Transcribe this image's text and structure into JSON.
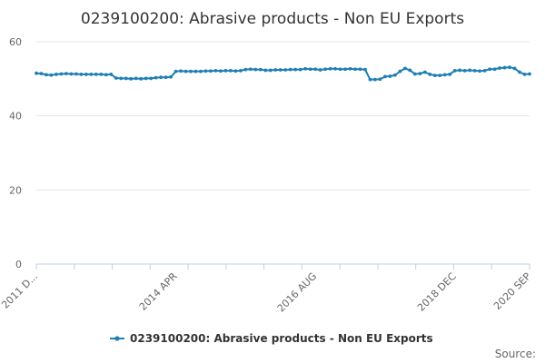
{
  "chart_data": {
    "type": "line",
    "title": "0239100200: Abrasive products - Non EU Exports",
    "xlabel": "",
    "ylabel": "",
    "ylim": [
      0,
      60
    ],
    "yticks": [
      "0",
      "20",
      "40",
      "60"
    ],
    "x_tick_labels": [
      "2011 D...",
      "2014 APR",
      "2016 AUG",
      "2018 DEC",
      "2020 SEP"
    ],
    "grid": true,
    "legend_position": "bottom",
    "source_label": "Source:",
    "series": [
      {
        "name": "0239100200: Abrasive products - Non EU Exports",
        "color": "#1f7fb4",
        "values": [
          51.5,
          51.4,
          51.1,
          51.0,
          51.2,
          51.3,
          51.4,
          51.3,
          51.3,
          51.2,
          51.2,
          51.2,
          51.2,
          51.2,
          51.1,
          51.2,
          50.2,
          50.1,
          50.1,
          50.0,
          50.1,
          50.0,
          50.1,
          50.1,
          50.3,
          50.4,
          50.4,
          50.5,
          52.0,
          52.1,
          52.0,
          52.0,
          52.0,
          52.0,
          52.1,
          52.1,
          52.2,
          52.1,
          52.2,
          52.2,
          52.1,
          52.2,
          52.5,
          52.6,
          52.5,
          52.5,
          52.3,
          52.3,
          52.4,
          52.4,
          52.4,
          52.5,
          52.5,
          52.5,
          52.7,
          52.6,
          52.6,
          52.4,
          52.6,
          52.7,
          52.7,
          52.6,
          52.6,
          52.7,
          52.6,
          52.6,
          52.5,
          49.8,
          49.8,
          49.9,
          50.6,
          50.7,
          51.0,
          52.0,
          52.8,
          52.3,
          51.3,
          51.4,
          51.8,
          51.2,
          50.9,
          50.9,
          51.1,
          51.2,
          52.2,
          52.3,
          52.2,
          52.3,
          52.2,
          52.1,
          52.2,
          52.6,
          52.6,
          52.9,
          53.0,
          53.1,
          52.8,
          51.8,
          51.2,
          51.3
        ]
      }
    ]
  }
}
